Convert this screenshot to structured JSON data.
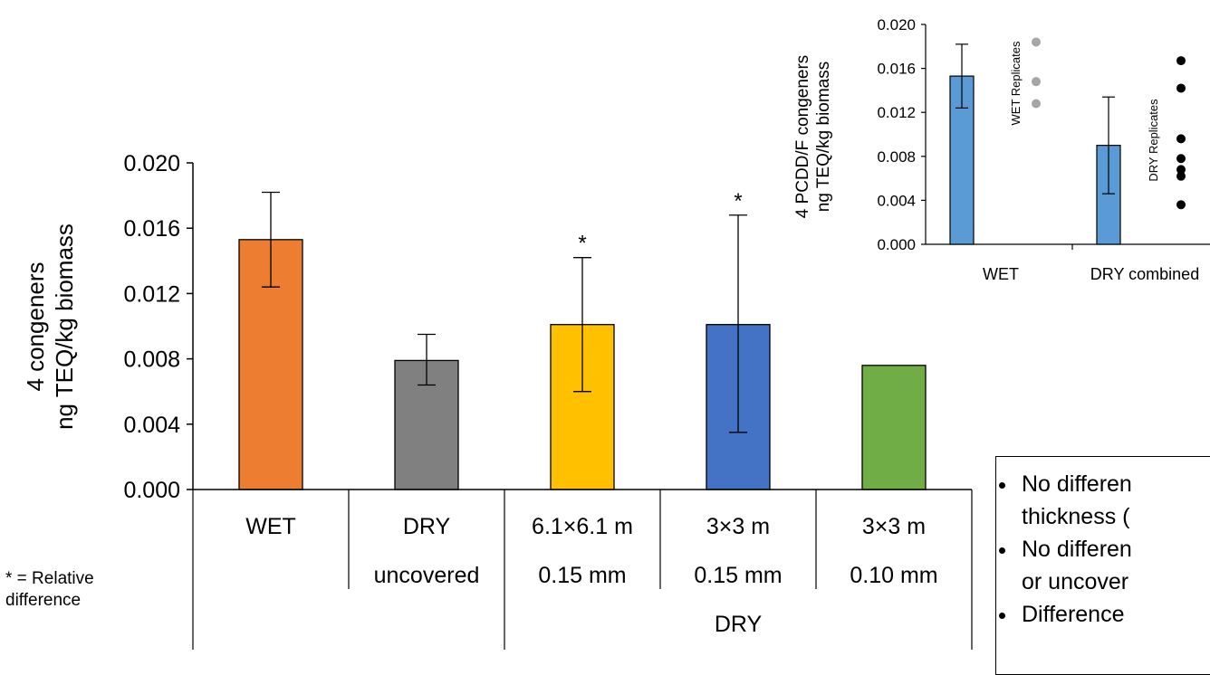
{
  "main_chart": {
    "ylabel_line1": "4 congeners",
    "ylabel_line2": "ng TEQ/kg biomass",
    "yticks": [
      "0.000",
      "0.004",
      "0.008",
      "0.012",
      "0.016",
      "0.020"
    ],
    "categories": [
      {
        "row1": "WET",
        "row2": "",
        "group": ""
      },
      {
        "row1": "DRY",
        "row2": "uncovered",
        "group": ""
      },
      {
        "row1": "6.1×6.1 m",
        "row2": "0.15 mm",
        "group": "DRY"
      },
      {
        "row1": "3×3 m",
        "row2": "0.15 mm",
        "group": "DRY"
      },
      {
        "row1": "3×3 m",
        "row2": "0.10 mm",
        "group": "DRY"
      }
    ],
    "group_label": "DRY",
    "significance_marker": "*"
  },
  "inset_chart": {
    "ylabel_line1": "4 PCDD/F congeners",
    "ylabel_line2": "ng TEQ/kg biomass",
    "yticks": [
      "0.000",
      "0.004",
      "0.008",
      "0.012",
      "0.016",
      "0.020"
    ],
    "categories": [
      "WET",
      "DRY combined"
    ],
    "wet_replicates_label": "WET Replicates",
    "dry_replicates_label": "DRY Replicates"
  },
  "footnote": {
    "star": "*",
    "line1": " = Relative",
    "line2": "difference"
  },
  "callout": {
    "bullets": [
      "No differen",
      "thickness (",
      "No differen",
      "or uncover",
      "Difference"
    ]
  },
  "chart_data": [
    {
      "type": "bar",
      "ylabel": "4 congeners ng TEQ/kg biomass",
      "ylim": [
        0,
        0.02
      ],
      "categories": [
        "WET",
        "DRY uncovered",
        "6.1×6.1 m 0.15 mm",
        "3×3 m 0.15 mm",
        "3×3 m 0.10 mm"
      ],
      "values": [
        0.0153,
        0.0079,
        0.0101,
        0.0101,
        0.0076
      ],
      "error_low": [
        0.0124,
        0.0064,
        0.006,
        0.0035,
        null
      ],
      "error_high": [
        0.0182,
        0.0095,
        0.0142,
        0.0168,
        null
      ],
      "significant": [
        false,
        false,
        true,
        true,
        false
      ],
      "colors": [
        "#ED7D31",
        "#808080",
        "#FFC000",
        "#4472C4",
        "#70AD47"
      ],
      "grid": false
    },
    {
      "type": "bar",
      "ylabel": "4 PCDD/F congeners ng TEQ/kg biomass",
      "ylim": [
        0,
        0.02
      ],
      "categories": [
        "WET",
        "DRY combined"
      ],
      "values": [
        0.0153,
        0.009
      ],
      "error_low": [
        0.0124,
        0.0046
      ],
      "error_high": [
        0.0182,
        0.0134
      ],
      "bar_color": "#5B9BD5",
      "replicates": {
        "WET": {
          "values": [
            0.0184,
            0.0148,
            0.0128
          ],
          "color": "#A6A6A6"
        },
        "DRY": {
          "values": [
            0.0167,
            0.0142,
            0.0096,
            0.0078,
            0.0068,
            0.0062,
            0.0036
          ],
          "color": "#000000"
        }
      },
      "grid": false
    }
  ]
}
